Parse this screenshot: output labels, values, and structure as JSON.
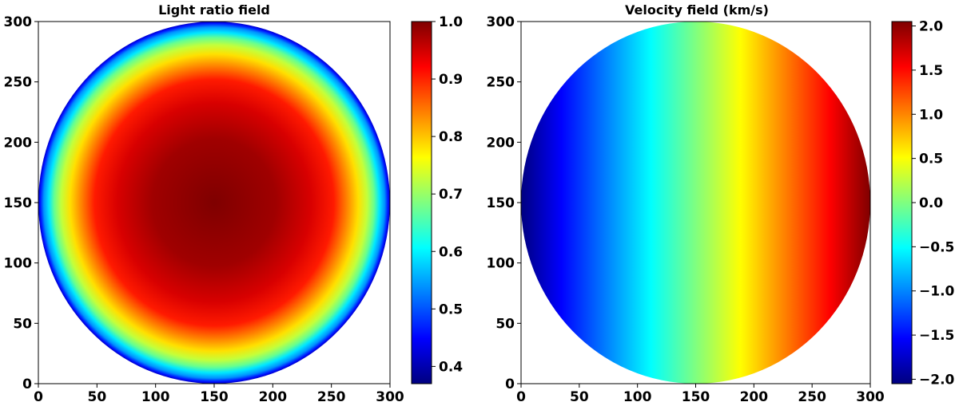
{
  "chart_data": [
    {
      "type": "heatmap",
      "title": "Light ratio field",
      "xlabel": "",
      "ylabel": "",
      "xlim": [
        0,
        300
      ],
      "ylim": [
        0,
        300
      ],
      "x_ticks": [
        0,
        50,
        100,
        150,
        200,
        250,
        300
      ],
      "y_ticks": [
        0,
        50,
        100,
        150,
        200,
        250,
        300
      ],
      "disk": {
        "center_x": 150,
        "center_y": 150,
        "radius": 150
      },
      "field": {
        "kind": "limb-darkening",
        "center_value": 1.0,
        "edge_value": 0.37
      },
      "colormap": "jet",
      "colorbar": {
        "min": 0.37,
        "max": 1.0,
        "ticks": [
          "1.0",
          "0.9",
          "0.8",
          "0.7",
          "0.6",
          "0.5",
          "0.4"
        ],
        "tick_values": [
          1.0,
          0.9,
          0.8,
          0.7,
          0.6,
          0.5,
          0.4
        ]
      }
    },
    {
      "type": "heatmap",
      "title": "Velocity field (km/s)",
      "xlabel": "",
      "ylabel": "",
      "xlim": [
        0,
        300
      ],
      "ylim": [
        0,
        300
      ],
      "x_ticks": [
        0,
        50,
        100,
        150,
        200,
        250,
        300
      ],
      "y_ticks": [
        0,
        50,
        100,
        150,
        200,
        250,
        300
      ],
      "disk": {
        "center_x": 150,
        "center_y": 150,
        "radius": 150
      },
      "field": {
        "kind": "linear-x-gradient",
        "value_at_x0": -2.0,
        "value_at_x300": 2.0
      },
      "colormap": "jet",
      "colorbar": {
        "min": -2.05,
        "max": 2.05,
        "ticks": [
          "2.0",
          "1.5",
          "1.0",
          "0.5",
          "0.0",
          "−0.5",
          "−1.0",
          "−1.5",
          "−2.0"
        ],
        "tick_values": [
          2.0,
          1.5,
          1.0,
          0.5,
          0.0,
          -0.5,
          -1.0,
          -1.5,
          -2.0
        ]
      }
    }
  ]
}
